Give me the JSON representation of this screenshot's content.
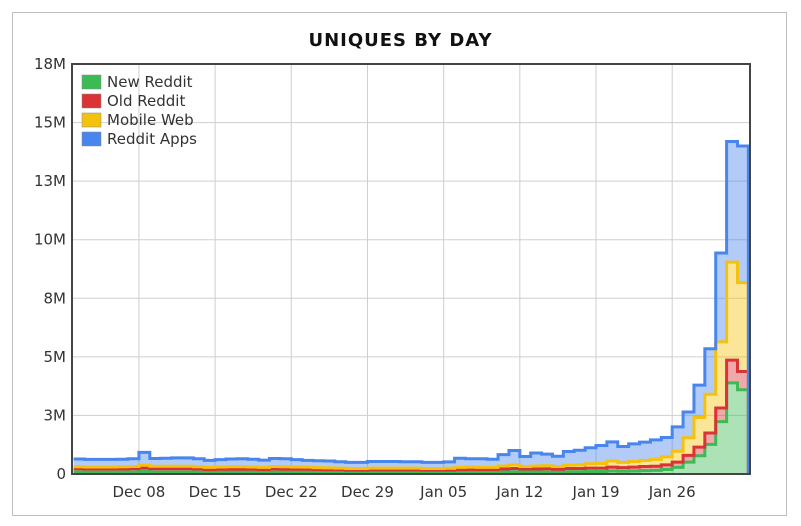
{
  "chart_data": {
    "type": "area",
    "title": "UNIQUES BY DAY",
    "stacked": true,
    "interpolation": "step",
    "legend_position": "top-left",
    "grid": true,
    "ylim": [
      0,
      18000000
    ],
    "y_ticks": [
      {
        "value": 0,
        "label": "0"
      },
      {
        "value": 2571429,
        "label": "3M"
      },
      {
        "value": 5142857,
        "label": "5M"
      },
      {
        "value": 7714286,
        "label": "8M"
      },
      {
        "value": 10285714,
        "label": "10M"
      },
      {
        "value": 12857143,
        "label": "13M"
      },
      {
        "value": 15428571,
        "label": "15M"
      },
      {
        "value": 18000000,
        "label": "18M"
      }
    ],
    "x_ticks": [
      {
        "index": 6,
        "label": "Dec 08"
      },
      {
        "index": 13,
        "label": "Dec 15"
      },
      {
        "index": 20,
        "label": "Dec 22"
      },
      {
        "index": 27,
        "label": "Dec 29"
      },
      {
        "index": 34,
        "label": "Jan 05"
      },
      {
        "index": 41,
        "label": "Jan 12"
      },
      {
        "index": 48,
        "label": "Jan 19"
      },
      {
        "index": 55,
        "label": "Jan 26"
      }
    ],
    "series": [
      {
        "name": "New Reddit",
        "color": "#3cba54",
        "values": [
          90000,
          80000,
          80000,
          80000,
          80000,
          90000,
          110000,
          90000,
          90000,
          90000,
          90000,
          80000,
          70000,
          80000,
          80000,
          80000,
          80000,
          70000,
          80000,
          80000,
          80000,
          80000,
          80000,
          70000,
          70000,
          60000,
          60000,
          70000,
          70000,
          70000,
          70000,
          70000,
          60000,
          60000,
          60000,
          70000,
          80000,
          80000,
          80000,
          90000,
          100000,
          90000,
          90000,
          90000,
          80000,
          100000,
          100000,
          110000,
          110000,
          130000,
          120000,
          130000,
          150000,
          160000,
          200000,
          290000,
          520000,
          800000,
          1300000,
          2300000,
          4000000,
          3700000
        ]
      },
      {
        "name": "Old Reddit",
        "color": "#db3236",
        "values": [
          140000,
          140000,
          140000,
          140000,
          140000,
          140000,
          150000,
          140000,
          140000,
          140000,
          140000,
          140000,
          130000,
          130000,
          130000,
          130000,
          130000,
          130000,
          140000,
          130000,
          130000,
          130000,
          120000,
          120000,
          120000,
          110000,
          110000,
          110000,
          110000,
          110000,
          110000,
          110000,
          110000,
          110000,
          110000,
          120000,
          120000,
          120000,
          120000,
          130000,
          140000,
          130000,
          130000,
          140000,
          130000,
          140000,
          140000,
          150000,
          150000,
          170000,
          160000,
          170000,
          180000,
          180000,
          200000,
          230000,
          300000,
          380000,
          500000,
          600000,
          1000000,
          800000
        ]
      },
      {
        "name": "Mobile Web",
        "color": "#f4c20d",
        "values": [
          90000,
          90000,
          90000,
          90000,
          100000,
          100000,
          130000,
          110000,
          110000,
          110000,
          110000,
          100000,
          90000,
          100000,
          110000,
          110000,
          100000,
          90000,
          110000,
          110000,
          100000,
          90000,
          80000,
          80000,
          70000,
          70000,
          70000,
          80000,
          80000,
          80000,
          80000,
          80000,
          70000,
          70000,
          80000,
          100000,
          100000,
          90000,
          90000,
          130000,
          160000,
          110000,
          130000,
          130000,
          120000,
          150000,
          160000,
          190000,
          200000,
          270000,
          230000,
          250000,
          270000,
          300000,
          350000,
          480000,
          770000,
          1300000,
          1700000,
          2900000,
          4300000,
          3900000
        ]
      },
      {
        "name": "Reddit Apps",
        "color": "#4885ed",
        "values": [
          340000,
          330000,
          330000,
          330000,
          330000,
          340000,
          560000,
          340000,
          350000,
          370000,
          370000,
          350000,
          310000,
          320000,
          340000,
          350000,
          340000,
          320000,
          350000,
          350000,
          320000,
          300000,
          300000,
          300000,
          280000,
          270000,
          270000,
          290000,
          290000,
          290000,
          280000,
          280000,
          270000,
          270000,
          280000,
          400000,
          370000,
          380000,
          360000,
          500000,
          630000,
          440000,
          570000,
          510000,
          450000,
          600000,
          640000,
          700000,
          790000,
          840000,
          700000,
          770000,
          800000,
          860000,
          850000,
          1070000,
          1130000,
          1420000,
          2000000,
          3900000,
          5300000,
          6000000
        ]
      }
    ]
  }
}
